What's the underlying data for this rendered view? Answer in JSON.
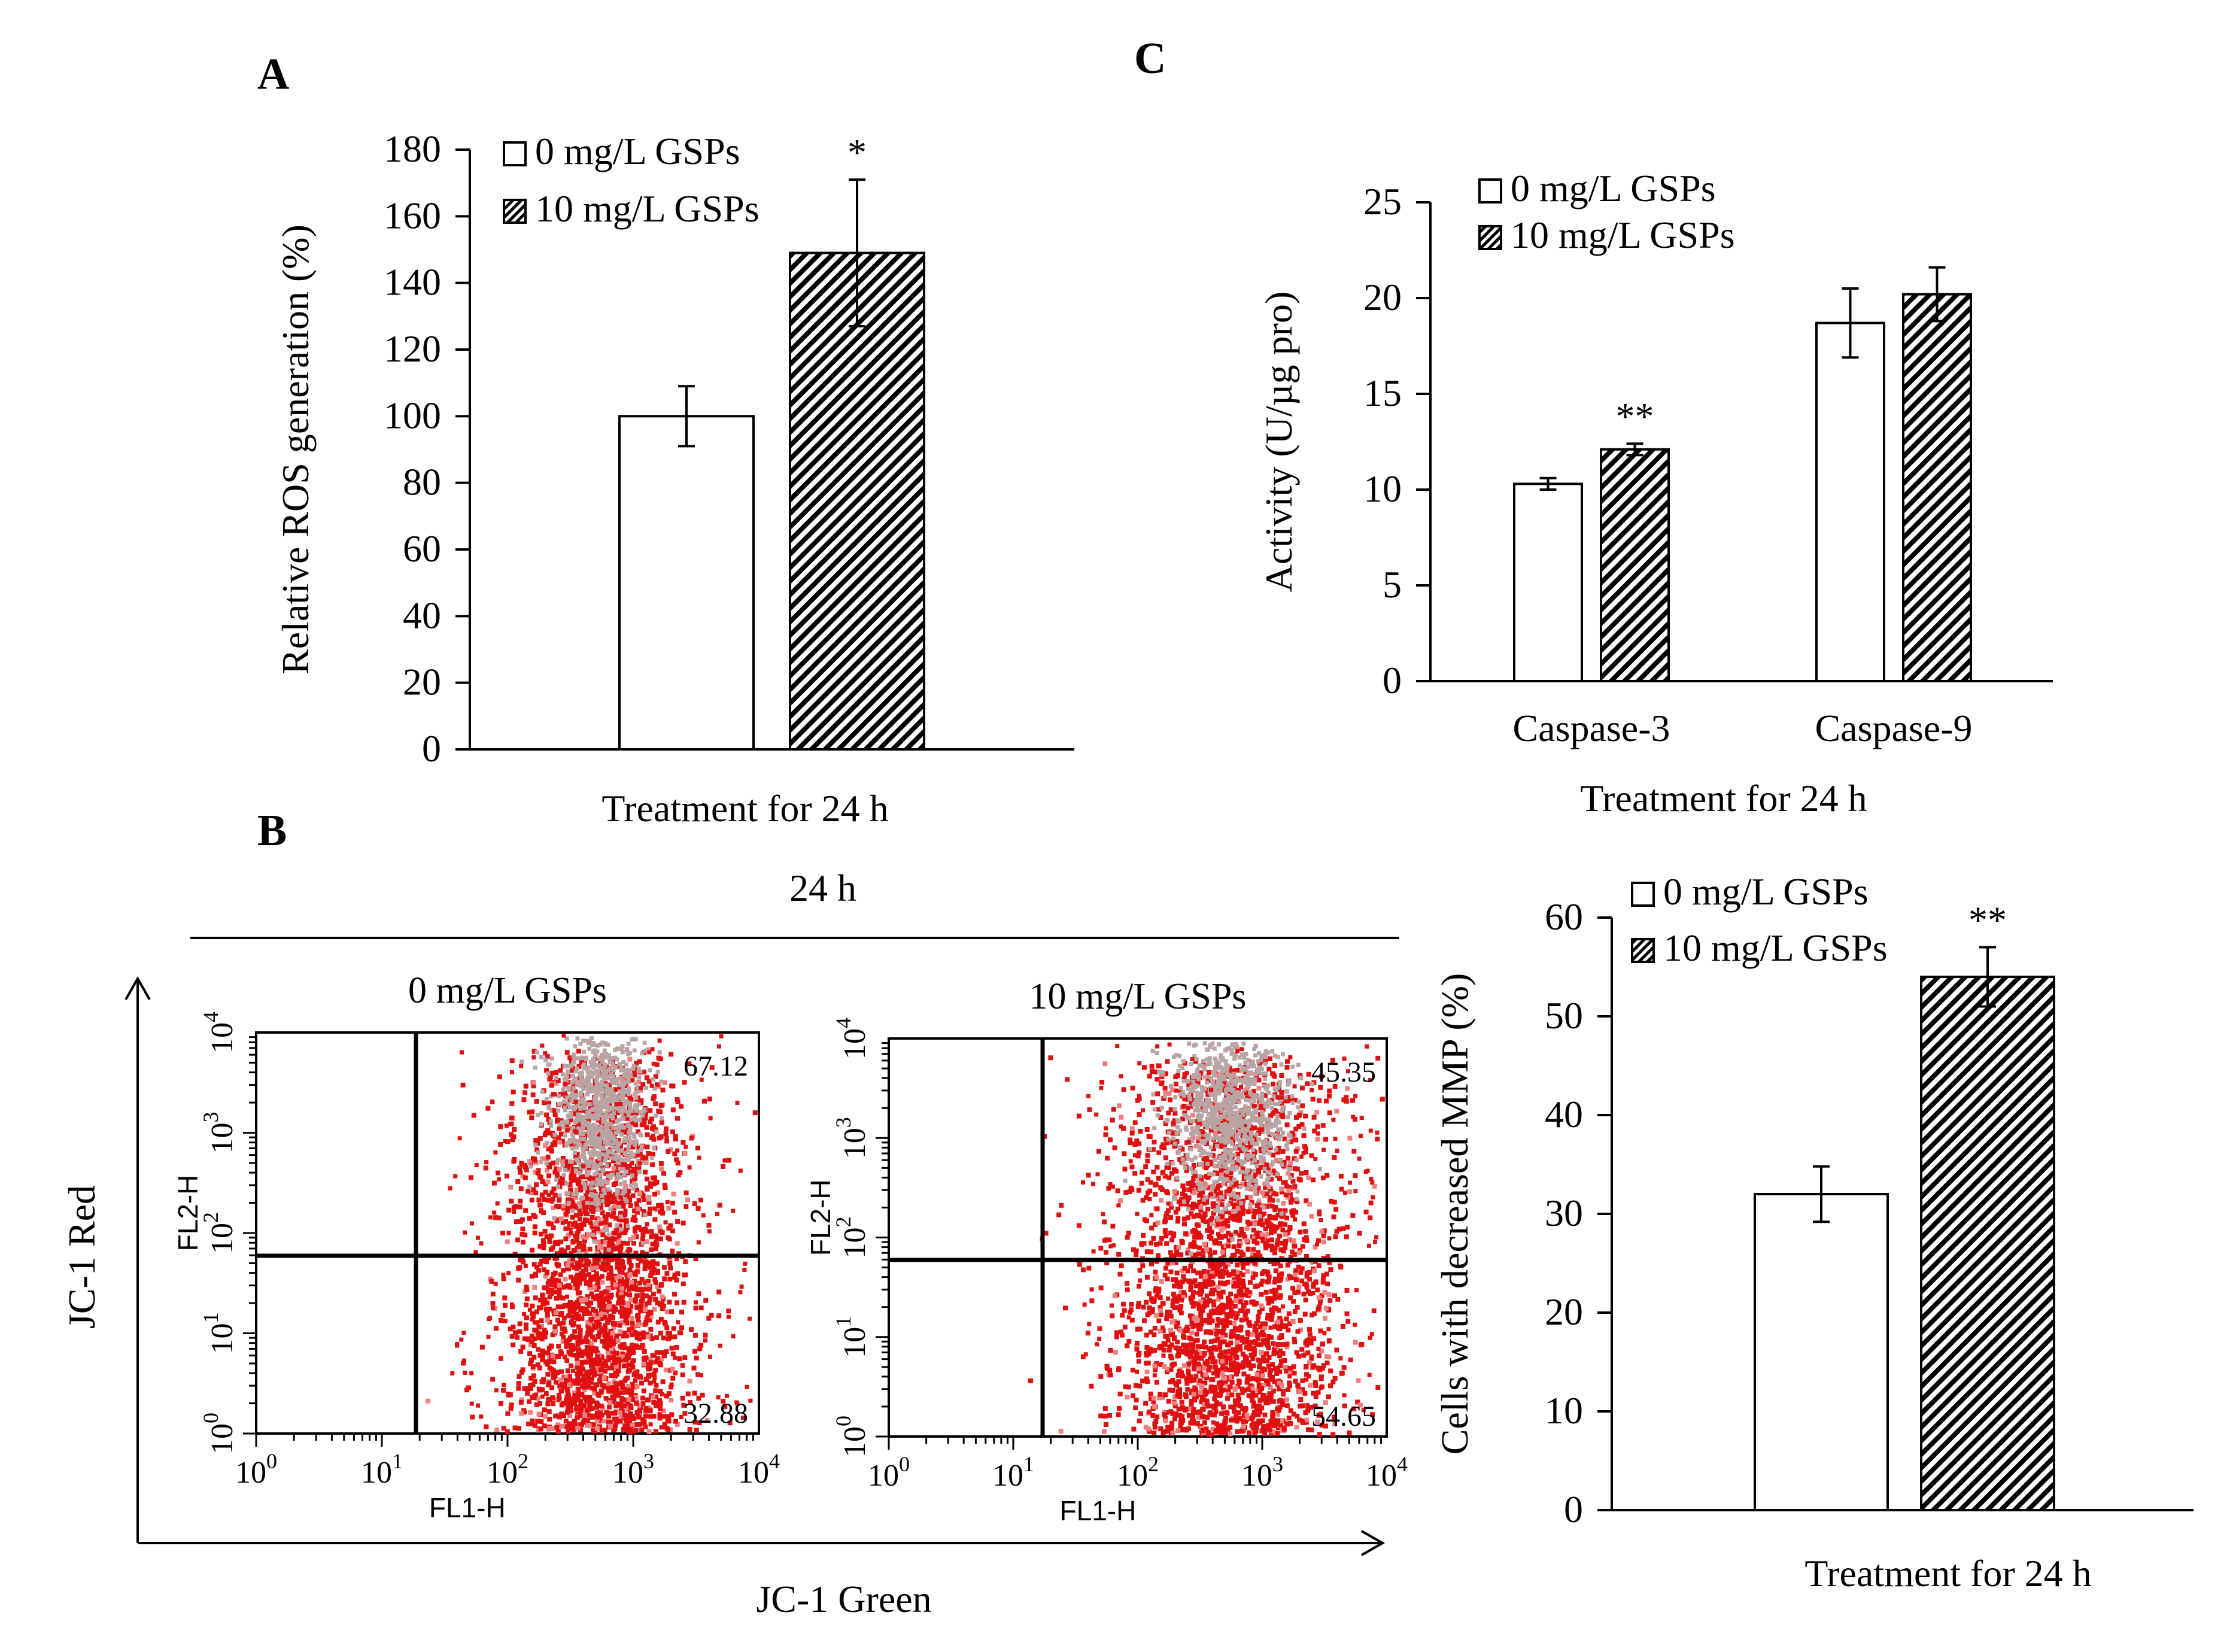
{
  "panel_labels": {
    "a": "A",
    "b": "B",
    "c": "C"
  },
  "colors": {
    "dot": "#e01010",
    "dot_light": "#f08080",
    "core": "#b9a3a3",
    "axis": "#000000"
  },
  "legend": {
    "series0": "0 mg/L GSPs",
    "series1": "10 mg/L GSPs"
  },
  "flow": {
    "header": "24 h",
    "x_axis_title": "JC-1 Green",
    "y_axis_title": "JC-1 Red",
    "xlabel": "FL1-H",
    "ylabel": "FL2-H",
    "tick_base": "10",
    "tick_exps": [
      "0",
      "1",
      "2",
      "3",
      "4"
    ],
    "plots": [
      {
        "title": "0 mg/L GSPs",
        "upper_right": "67.12",
        "lower_right": "32.88"
      },
      {
        "title": "10 mg/L GSPs",
        "upper_right": "45.35",
        "lower_right": "54.65"
      }
    ]
  },
  "chart_data": [
    {
      "id": "A",
      "type": "bar",
      "categories": [
        ""
      ],
      "series": [
        {
          "name": "0 mg/L GSPs",
          "values": [
            100
          ],
          "errors": [
            9
          ],
          "pattern": "none"
        },
        {
          "name": "10 mg/L GSPs",
          "values": [
            149
          ],
          "errors": [
            22
          ],
          "pattern": "hatch"
        }
      ],
      "significance": [
        "",
        "*"
      ],
      "xlabel": "Treatment for 24 h",
      "ylabel": "Relative ROS generation (%)",
      "ylim": [
        0,
        180
      ],
      "yticks": [
        0,
        20,
        40,
        60,
        80,
        100,
        120,
        140,
        160,
        180
      ]
    },
    {
      "id": "C",
      "type": "bar",
      "categories": [
        "Caspase-3",
        "Caspase-9"
      ],
      "series": [
        {
          "name": "0 mg/L GSPs",
          "values": [
            10.3,
            18.7
          ],
          "errors": [
            0.3,
            1.8
          ],
          "pattern": "none"
        },
        {
          "name": "10 mg/L GSPs",
          "values": [
            12.1,
            20.2
          ],
          "errors": [
            0.3,
            1.4
          ],
          "pattern": "hatch"
        }
      ],
      "significance": [
        [
          "",
          "**"
        ],
        [
          "",
          ""
        ]
      ],
      "xlabel": "Treatment for 24 h",
      "ylabel": "Activity (U/µg pro)",
      "ylim": [
        0,
        25
      ],
      "yticks": [
        0,
        5,
        10,
        15,
        20,
        25
      ]
    },
    {
      "id": "B-right",
      "type": "bar",
      "categories": [
        ""
      ],
      "series": [
        {
          "name": "0 mg/L GSPs",
          "values": [
            32
          ],
          "errors": [
            2.8
          ],
          "pattern": "none"
        },
        {
          "name": "10 mg/L GSPs",
          "values": [
            54
          ],
          "errors": [
            3
          ],
          "pattern": "hatch"
        }
      ],
      "significance": [
        "",
        "**"
      ],
      "xlabel": "Treatment for 24 h",
      "ylabel": "Cells with decreased MMP (%)",
      "ylim": [
        0,
        60
      ],
      "yticks": [
        0,
        10,
        20,
        30,
        40,
        50,
        60
      ]
    }
  ]
}
